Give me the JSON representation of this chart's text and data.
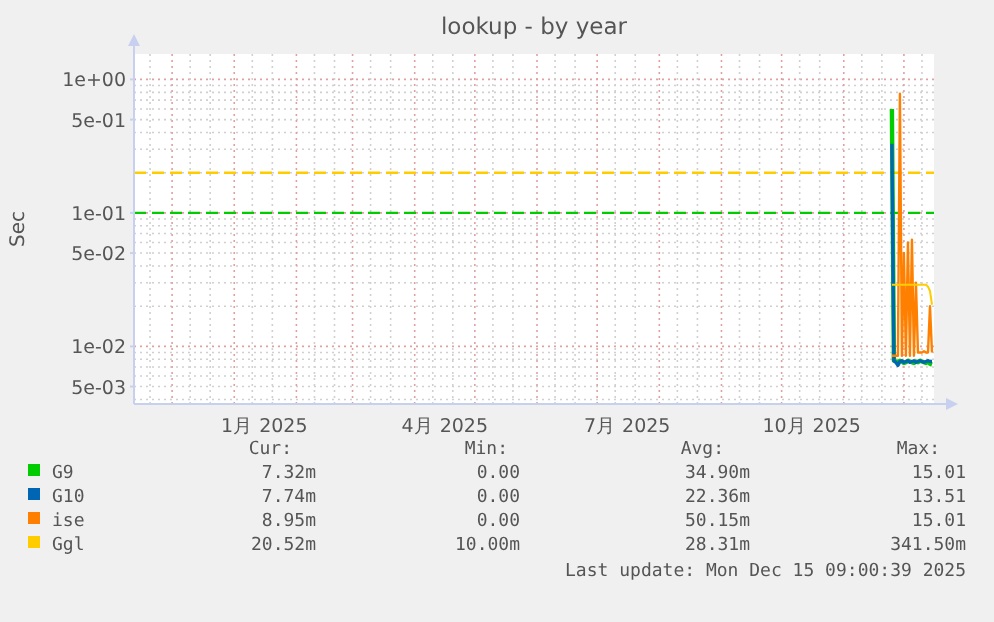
{
  "chart_data": {
    "type": "line",
    "title": "lookup - by year",
    "ylabel": "Sec",
    "log": "y",
    "grid": true,
    "legend": "bottom",
    "xlim": [
      "2024-11-12",
      "2025-12-16"
    ],
    "xticks": [
      {
        "value": "2025-01-16",
        "label": "1月 2025"
      },
      {
        "value": "2025-04-16",
        "label": "4月 2025"
      },
      {
        "value": "2025-07-16",
        "label": "7月 2025"
      },
      {
        "value": "2025-10-16",
        "label": "10月 2025"
      }
    ],
    "ylim": [
      0.0037,
      1.55
    ],
    "yticks": [
      {
        "value": 0.005,
        "label": "5e-03"
      },
      {
        "value": 0.01,
        "label": "1e-02"
      },
      {
        "value": 0.05,
        "label": "5e-02"
      },
      {
        "value": 0.1,
        "label": "1e-01"
      },
      {
        "value": 0.5,
        "label": "5e-01"
      },
      {
        "value": 1,
        "label": "1e+00"
      }
    ],
    "x": [
      "2025-11-25",
      "2025-11-26",
      "2025-11-27",
      "2025-11-28",
      "2025-11-29",
      "2025-11-30",
      "2025-12-01",
      "2025-12-02",
      "2025-12-03",
      "2025-12-04",
      "2025-12-05",
      "2025-12-06",
      "2025-12-07",
      "2025-12-08",
      "2025-12-09",
      "2025-12-10",
      "2025-12-11",
      "2025-12-12",
      "2025-12-13",
      "2025-12-14",
      "2025-12-15"
    ],
    "series": [
      {
        "name": "G9",
        "color": "#00cc00",
        "values": [
          0.6,
          0.0078,
          0.0077,
          0.0076,
          0.0078,
          0.0077,
          0.0075,
          0.0076,
          0.0078,
          0.0077,
          0.0076,
          0.0075,
          0.0077,
          0.0076,
          0.0078,
          0.0077,
          0.0076,
          0.0075,
          0.0077,
          0.0074,
          0.0073
        ]
      },
      {
        "name": "G10",
        "color": "#0066b3",
        "values": [
          0.33,
          0.0078,
          0.0076,
          0.0072,
          0.0077,
          0.0078,
          0.0076,
          0.0077,
          0.0078,
          0.0076,
          0.0077,
          0.0078,
          0.0076,
          0.0077,
          0.0078,
          0.0077,
          0.0076,
          0.0077,
          0.0078,
          0.0077,
          0.0077
        ]
      },
      {
        "name": "ise",
        "color": "#ff8000",
        "values": [
          0.0085,
          0.0085,
          0.0085,
          0.0085,
          0.78,
          0.0085,
          0.05,
          0.0085,
          0.06,
          0.0085,
          0.063,
          0.0085,
          0.03,
          0.009,
          0.009,
          0.009,
          0.0092,
          0.009,
          0.009,
          0.02,
          0.009
        ]
      },
      {
        "name": "Ggl",
        "color": "#ffcc00",
        "values": [
          0.029,
          0.029,
          0.029,
          0.029,
          0.029,
          0.029,
          0.029,
          0.029,
          0.029,
          0.029,
          0.029,
          0.029,
          0.029,
          0.029,
          0.029,
          0.029,
          0.029,
          0.029,
          0.028,
          0.026,
          0.0205
        ]
      }
    ],
    "ref_lines": [
      {
        "axis": "y",
        "value": 0.2,
        "color": "#ffcc00",
        "line_style": "dashed"
      },
      {
        "axis": "y",
        "value": 0.1,
        "color": "#00cc00",
        "line_style": "dashed"
      }
    ],
    "annotations": [
      "Cur:",
      "Min:",
      "Avg:",
      "Max:",
      "7.32m",
      "0.00",
      "34.90m",
      "15.01",
      "7.74m",
      "0.00",
      "22.36m",
      "13.51",
      "8.95m",
      "0.00",
      "50.15m",
      "15.01",
      "20.52m",
      "10.00m",
      "28.31m",
      "341.50m",
      "Last update: Mon Dec 15 09:00:39 2025"
    ]
  }
}
